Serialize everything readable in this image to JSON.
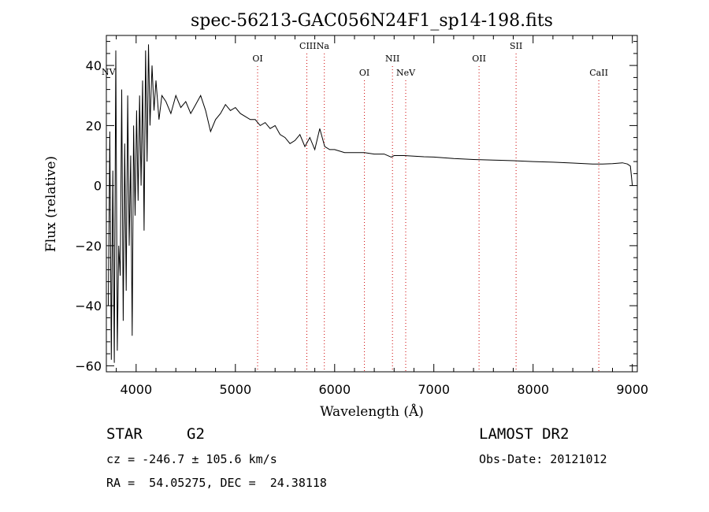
{
  "chart_data": {
    "type": "line",
    "title": "spec-56213-GAC056N24F1_sp14-198.fits",
    "xlabel": "Wavelength (Å)",
    "ylabel": "Flux (relative)",
    "xlim": [
      3700,
      9050
    ],
    "ylim": [
      -62,
      50
    ],
    "x_ticks": [
      4000,
      5000,
      6000,
      7000,
      8000,
      9000
    ],
    "y_ticks": [
      -60,
      -40,
      -20,
      0,
      20,
      40
    ],
    "grid": false,
    "line_color": "#000000",
    "marker_color": "#cc0000",
    "series": [
      {
        "x": [
          3720,
          3735,
          3750,
          3765,
          3780,
          3795,
          3810,
          3825,
          3840,
          3855,
          3870,
          3885,
          3900,
          3915,
          3930,
          3945,
          3960,
          3975,
          3990,
          4005,
          4020,
          4035,
          4050,
          4065,
          4080,
          4095,
          4110,
          4125,
          4140,
          4160,
          4180,
          4200,
          4230,
          4260,
          4300,
          4350,
          4400,
          4450,
          4500,
          4550,
          4600,
          4650,
          4700,
          4750,
          4800,
          4850,
          4900,
          4950,
          5000,
          5050,
          5100,
          5150,
          5200,
          5250,
          5300,
          5350,
          5400,
          5450,
          5500,
          5550,
          5600,
          5650,
          5700,
          5750,
          5800,
          5850,
          5900,
          5950,
          6000,
          6100,
          6200,
          6300,
          6400,
          6500,
          6570,
          6600,
          6700,
          6800,
          6900,
          7000,
          7200,
          7400,
          7600,
          7800,
          8000,
          8200,
          8400,
          8600,
          8700,
          8800,
          8900,
          8950,
          8980,
          9000
        ],
        "y": [
          -40,
          18,
          -58,
          5,
          -59,
          45,
          -55,
          -20,
          -30,
          32,
          -45,
          14,
          -35,
          30,
          -20,
          10,
          -50,
          20,
          -10,
          25,
          -5,
          30,
          0,
          35,
          -15,
          45,
          8,
          47,
          20,
          40,
          25,
          35,
          22,
          30,
          28,
          24,
          30,
          26,
          28,
          24,
          27,
          30,
          25,
          18,
          22,
          24,
          27,
          25,
          26,
          24,
          23,
          22,
          22,
          20,
          21,
          19,
          20,
          17,
          16,
          14,
          15,
          17,
          13,
          16,
          12,
          19,
          13,
          12,
          12,
          11,
          11,
          11,
          10.5,
          10.5,
          9.5,
          10,
          10,
          9.8,
          9.6,
          9.5,
          9,
          8.7,
          8.5,
          8.3,
          8,
          7.8,
          7.5,
          7.2,
          7.2,
          7.3,
          7.6,
          7.2,
          6.5,
          0
        ]
      }
    ],
    "line_markers": [
      {
        "label": "NV",
        "wavelength": 3740
      },
      {
        "label": "OI",
        "wavelength": 5224
      },
      {
        "label": "CIII",
        "wavelength": 5720
      },
      {
        "label": "Na",
        "wavelength": 5896
      },
      {
        "label": "OI",
        "wavelength": 6300
      },
      {
        "label": "NII",
        "wavelength": 6583
      },
      {
        "label": "NeV",
        "wavelength": 6716
      },
      {
        "label": "OII",
        "wavelength": 7455
      },
      {
        "label": "SII",
        "wavelength": 7828
      },
      {
        "label": "CaII",
        "wavelength": 8662
      }
    ]
  },
  "info": {
    "object_type": "STAR",
    "subclass": "G2",
    "survey": "LAMOST DR2",
    "cz": "cz = -246.7 ± 105.6 km/s",
    "obs_date": "Obs-Date: 20121012",
    "coords": "RA =  54.05275, DEC =  24.38118"
  }
}
